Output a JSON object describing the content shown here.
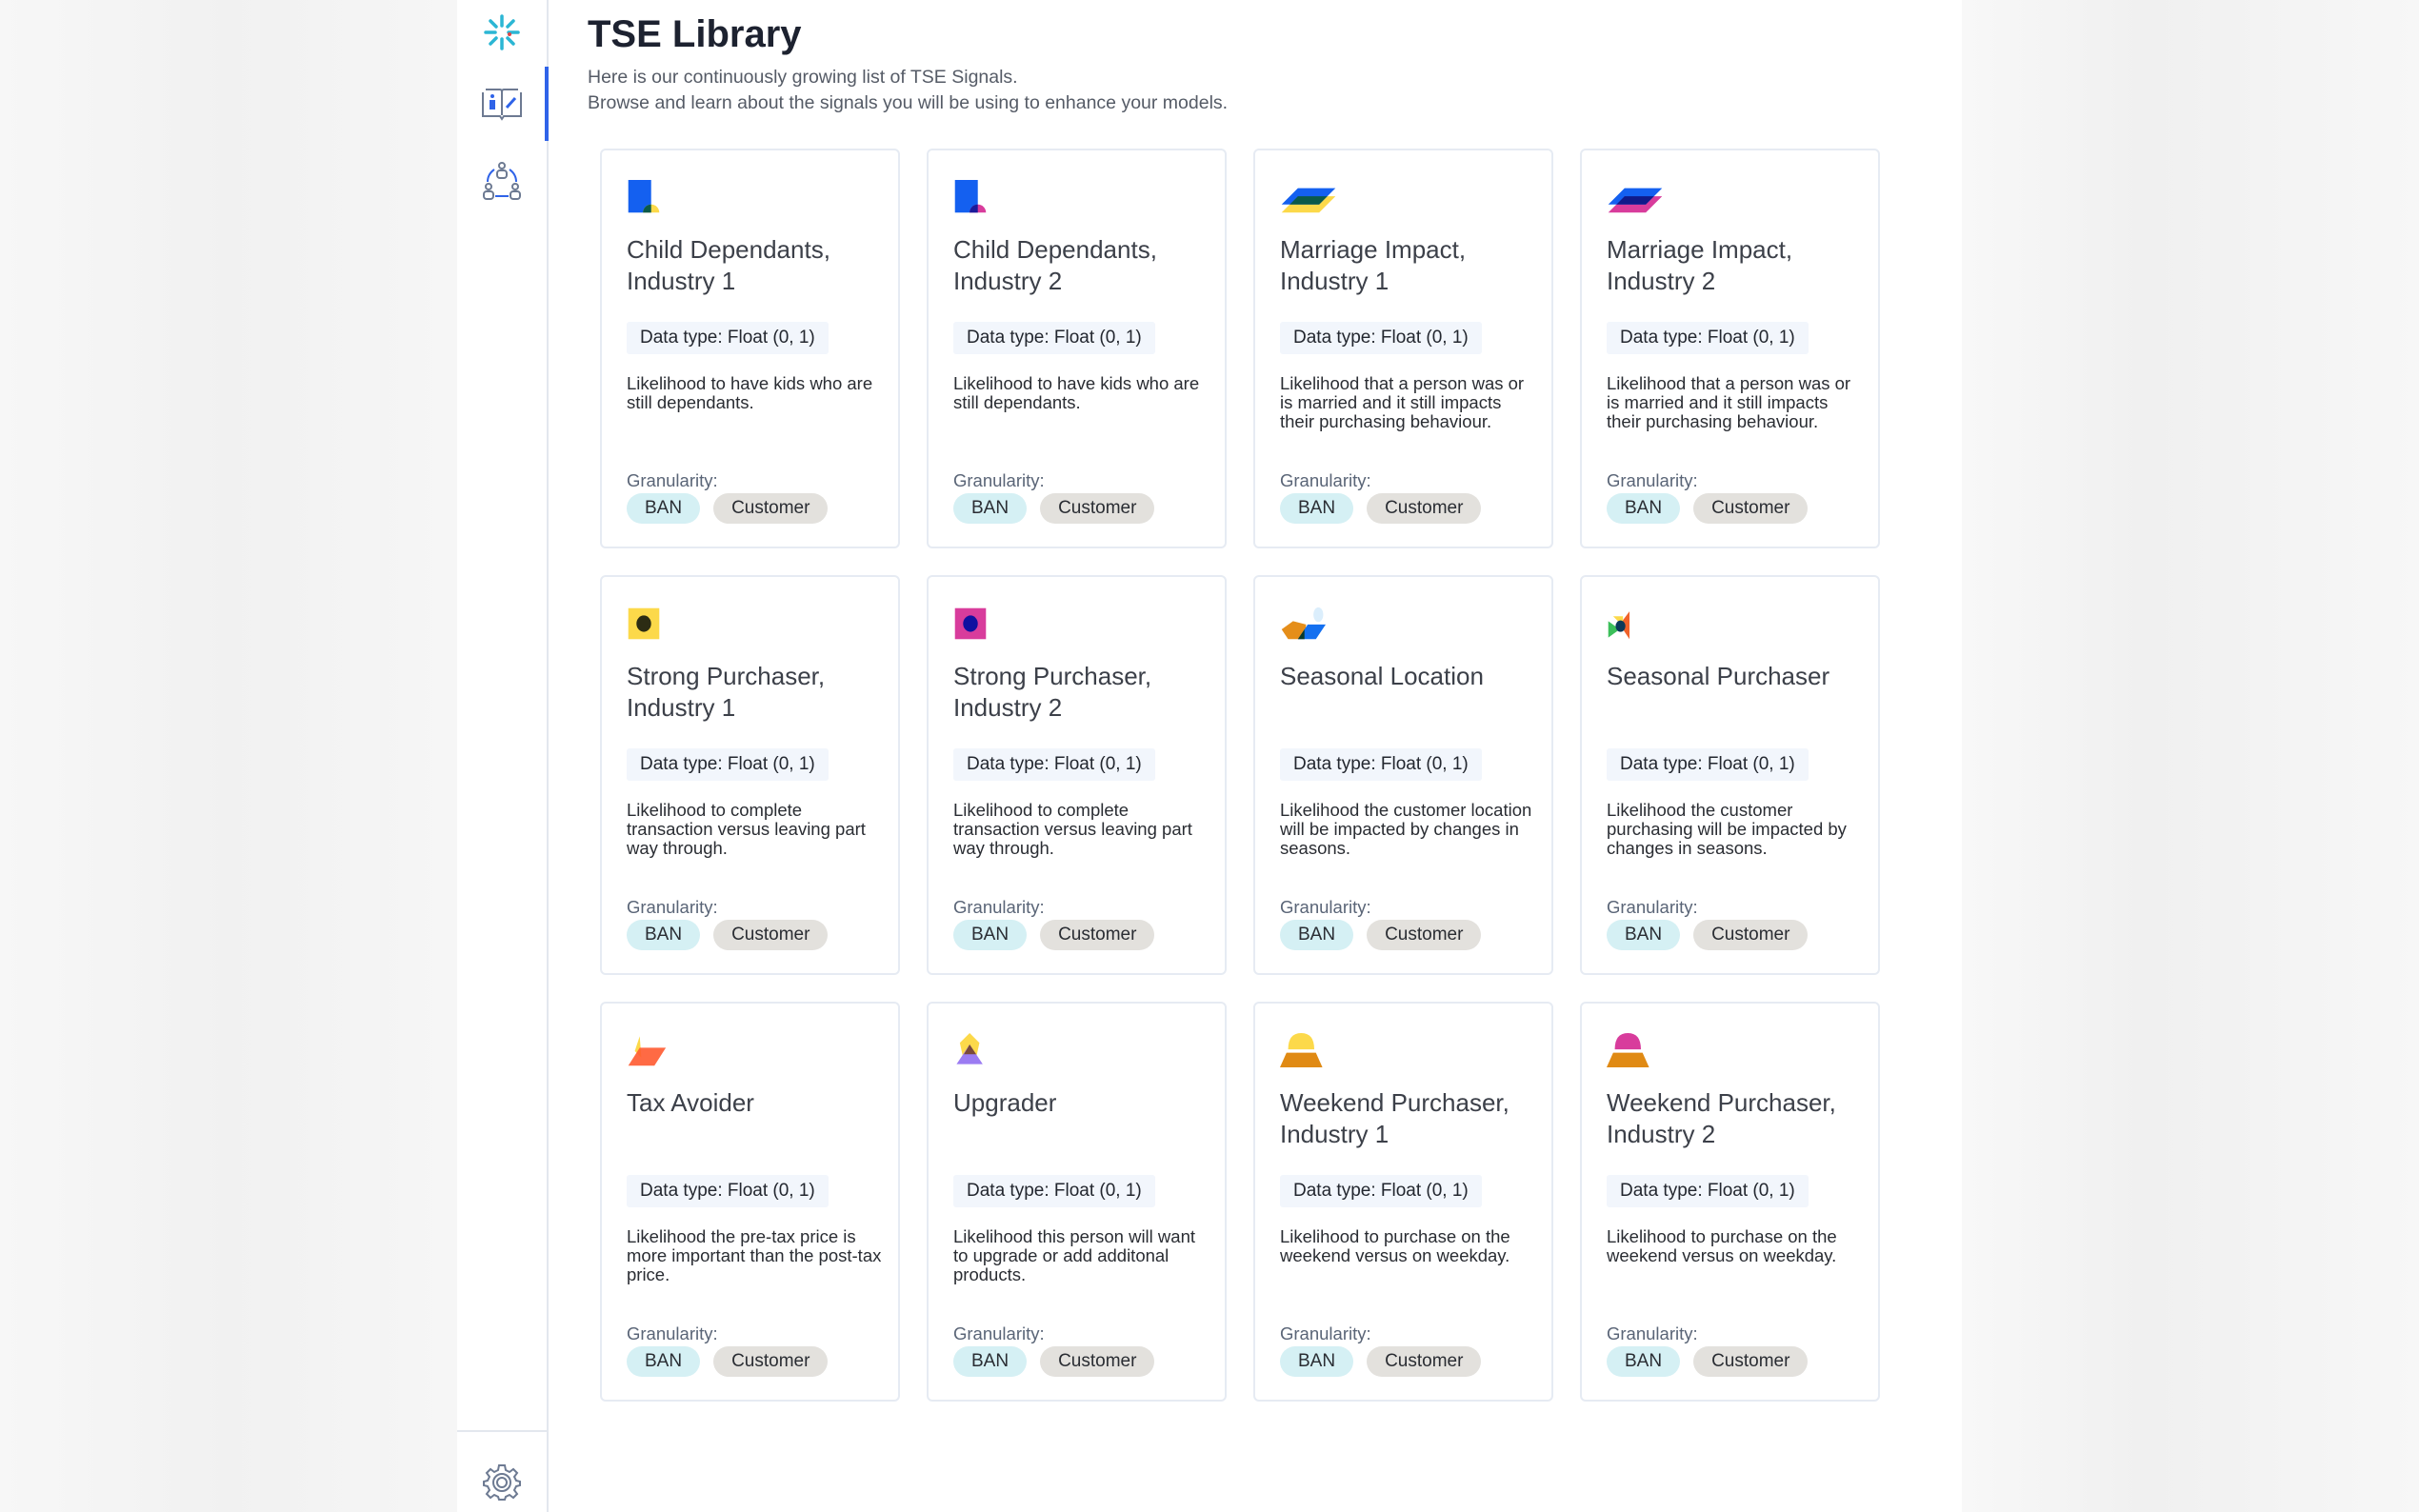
{
  "page": {
    "title": "TSE Library",
    "subtitle_lines": [
      "Here is our continuously growing list of TSE Signals.",
      "Browse and learn about the signals you will be using to enhance your models."
    ]
  },
  "sidebar": {
    "logo_icon": "sparkle-logo-icon",
    "items": [
      {
        "icon": "book-icon",
        "active": true
      },
      {
        "icon": "people-network-icon",
        "active": false
      }
    ],
    "settings_icon": "gear-icon",
    "accent_color": "#2f63e8"
  },
  "granularity_label": "Granularity:",
  "cards": [
    {
      "title": "Child Dependants, Industry 1",
      "icon": "child-dependants-1-icon",
      "data_type": "Data type: Float (0, 1)",
      "description": "Likelihood to have kids who are still dependants.",
      "granularity": [
        "BAN",
        "Customer"
      ]
    },
    {
      "title": "Child Dependants, Industry 2",
      "icon": "child-dependants-2-icon",
      "data_type": "Data type: Float (0, 1)",
      "description": "Likelihood to have kids who are still dependants.",
      "granularity": [
        "BAN",
        "Customer"
      ]
    },
    {
      "title": "Marriage Impact, Industry 1",
      "icon": "marriage-impact-1-icon",
      "data_type": "Data type: Float (0, 1)",
      "description": "Likelihood that a person was or is married and it still impacts their purchasing behaviour.",
      "granularity": [
        "BAN",
        "Customer"
      ]
    },
    {
      "title": "Marriage Impact, Industry 2",
      "icon": "marriage-impact-2-icon",
      "data_type": "Data type: Float (0, 1)",
      "description": "Likelihood that a person was or is married and it still impacts their purchasing behaviour.",
      "granularity": [
        "BAN",
        "Customer"
      ]
    },
    {
      "title": "Strong Purchaser, Industry 1",
      "icon": "strong-purchaser-1-icon",
      "data_type": "Data type: Float (0, 1)",
      "description": "Likelihood to complete transaction versus leaving part way through.",
      "granularity": [
        "BAN",
        "Customer"
      ]
    },
    {
      "title": "Strong Purchaser, Industry 2",
      "icon": "strong-purchaser-2-icon",
      "data_type": "Data type: Float (0, 1)",
      "description": "Likelihood to complete transaction versus leaving part way through.",
      "granularity": [
        "BAN",
        "Customer"
      ]
    },
    {
      "title": "Seasonal Location",
      "icon": "seasonal-location-icon",
      "data_type": "Data type: Float (0, 1)",
      "description": "Likelihood the customer location will be impacted by changes in seasons.",
      "granularity": [
        "BAN",
        "Customer"
      ]
    },
    {
      "title": "Seasonal Purchaser",
      "icon": "seasonal-purchaser-icon",
      "data_type": "Data type: Float (0, 1)",
      "description": "Likelihood the customer purchasing will be impacted by changes in seasons.",
      "granularity": [
        "BAN",
        "Customer"
      ]
    },
    {
      "title": "Tax Avoider",
      "icon": "tax-avoider-icon",
      "data_type": "Data type: Float (0, 1)",
      "description": "Likelihood the pre-tax price is more important than the post-tax price.",
      "granularity": [
        "BAN",
        "Customer"
      ]
    },
    {
      "title": "Upgrader",
      "icon": "upgrader-icon",
      "data_type": "Data type: Float (0, 1)",
      "description": "Likelihood this person will want to upgrade or add additonal products.",
      "granularity": [
        "BAN",
        "Customer"
      ]
    },
    {
      "title": "Weekend Purchaser, Industry 1",
      "icon": "weekend-purchaser-1-icon",
      "data_type": "Data type: Float (0, 1)",
      "description": "Likelihood to purchase on the weekend versus on weekday.",
      "granularity": [
        "BAN",
        "Customer"
      ]
    },
    {
      "title": "Weekend Purchaser, Industry 2",
      "icon": "weekend-purchaser-2-icon",
      "data_type": "Data type: Float (0, 1)",
      "description": "Likelihood to purchase on the weekend versus on weekday.",
      "granularity": [
        "BAN",
        "Customer"
      ]
    }
  ]
}
